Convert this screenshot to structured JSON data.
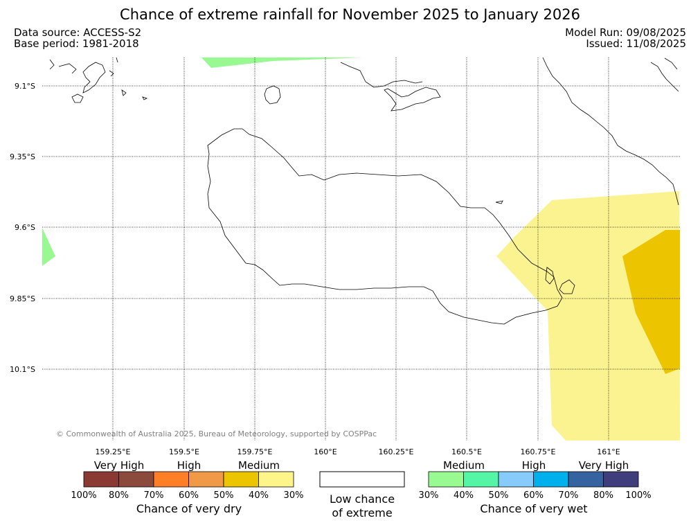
{
  "title": "Chance of extreme rainfall for November 2025 to January 2026",
  "header": {
    "data_source": "Data source: ACCESS-S2",
    "base_period": "Base period: 1981-2018",
    "model_run": "Model Run: 09/08/2025",
    "issued": "Issued: 11/08/2025"
  },
  "map": {
    "lat_labels": [
      "9.1°S",
      "9.35°S",
      "9.6°S",
      "9.85°S",
      "10.1°S"
    ],
    "lon_labels": [
      "159.25°E",
      "159.5°E",
      "159.75°E",
      "160°E",
      "160.25°E",
      "160.5°E",
      "160.75°E",
      "161°E"
    ],
    "copyright": "© Commonwealth of Australia 2025, Bureau of Meteorology, supported by COSPPac"
  },
  "legend": {
    "dry": {
      "levels": [
        "Very High",
        "High",
        "Medium"
      ],
      "colors": [
        "#8b3a33",
        "#8b4a3c",
        "#ff7f27",
        "#f09a48",
        "#ebc500",
        "#fdf58a"
      ],
      "ticks": [
        "100%",
        "80%",
        "70%",
        "60%",
        "50%",
        "40%",
        "30%"
      ],
      "caption": "Chance of very dry"
    },
    "low": {
      "caption_line1": "Low chance",
      "caption_line2": "of extreme"
    },
    "wet": {
      "levels": [
        "Medium",
        "High",
        "Very High"
      ],
      "colors": [
        "#9afa92",
        "#55f5a6",
        "#86cbf9",
        "#00b0ec",
        "#3562a1",
        "#403d7c"
      ],
      "ticks": [
        "30%",
        "40%",
        "50%",
        "60%",
        "70%",
        "80%",
        "100%"
      ],
      "caption": "Chance of very wet"
    }
  },
  "shading_colors": {
    "green": "#98f892",
    "light_yellow": "#fbf38f",
    "dark_yellow": "#ecc500"
  }
}
